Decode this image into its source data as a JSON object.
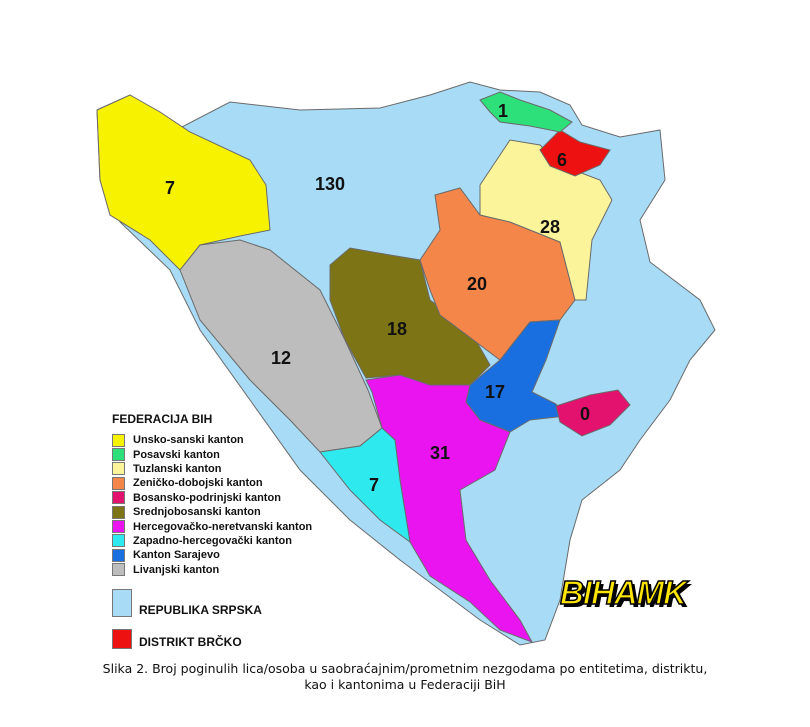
{
  "regions": [
    {
      "id": "rs",
      "name": "REPUBLIKA SRPSKA",
      "value": "130",
      "color": "#a8dcf6"
    },
    {
      "id": "usk",
      "name": "Unsko-sanski kanton",
      "value": "7",
      "color": "#f7f200"
    },
    {
      "id": "pos",
      "name": "Posavski kanton",
      "value": "1",
      "color": "#2ee07a"
    },
    {
      "id": "tuz",
      "name": "Tuzlanski kanton",
      "value": "28",
      "color": "#fbf49a"
    },
    {
      "id": "zdk",
      "name": "Zeničko-dobojski kanton",
      "value": "20",
      "color": "#f4864a"
    },
    {
      "id": "bpk",
      "name": "Bosansko-podrinjski kanton",
      "value": "0",
      "color": "#e3126e"
    },
    {
      "id": "sbk",
      "name": "Srednjobosanski kanton",
      "value": "18",
      "color": "#7d7416"
    },
    {
      "id": "hnk",
      "name": "Hercegovačko-neretvanski kanton",
      "value": "31",
      "color": "#ea14f0"
    },
    {
      "id": "zhk",
      "name": "Zapadno-hercegovački kanton",
      "value": "7",
      "color": "#2ee9ee"
    },
    {
      "id": "ks",
      "name": "Kanton Sarajevo",
      "value": "17",
      "color": "#1a6fe0"
    },
    {
      "id": "liv",
      "name": "Livanjski kanton",
      "value": "12",
      "color": "#bdbdbd"
    },
    {
      "id": "brc",
      "name": "DISTRIKT BRČKO",
      "value": "6",
      "color": "#ee1111"
    }
  ],
  "legend": {
    "title": "FEDERACIJA BIH",
    "items": [
      "Unsko-sanski kanton",
      "Posavski kanton",
      "Tuzlanski kanton",
      "Zeničko-dobojski kanton",
      "Bosansko-podrinjski kanton",
      "Srednjobosanski kanton",
      "Hercegovačko-neretvanski kanton",
      "Zapadno-hercegovački kanton",
      "Kanton Sarajevo",
      "Livanjski kanton"
    ],
    "colors": [
      "#f7f200",
      "#2ee07a",
      "#fbf49a",
      "#f4864a",
      "#e3126e",
      "#7d7416",
      "#ea14f0",
      "#2ee9ee",
      "#1a6fe0",
      "#bdbdbd"
    ],
    "rs": "REPUBLIKA SRPSKA",
    "brcko": "DISTRIKT BRČKO"
  },
  "logo": "BIHAMK",
  "caption": {
    "line1": "Slika 2. Broj poginulih lica/osoba u saobraćajnim/prometnim nezgodama po entitetima, distriktu,",
    "line2": "kao i kantonima u Federaciji BiH"
  }
}
